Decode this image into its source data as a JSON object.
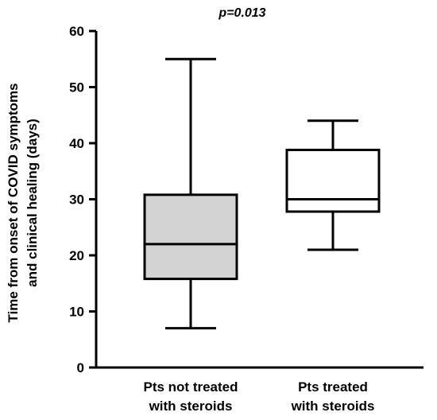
{
  "chart_data": {
    "type": "box",
    "annotation": "p=0.013",
    "ylabel_line1": "Time from onset of COVID symptoms",
    "ylabel_line2": "and clinical healing (days)",
    "ylim": [
      0,
      60
    ],
    "yticks": [
      0,
      10,
      20,
      30,
      40,
      50,
      60
    ],
    "groups": [
      {
        "label_line1": "Pts not treated",
        "label_line2": "with steroids",
        "min": 7,
        "q1": 15.8,
        "median": 22,
        "q3": 30.8,
        "max": 55,
        "fill": "#d3d3d3"
      },
      {
        "label_line1": "Pts treated",
        "label_line2": "with steroids",
        "min": 21,
        "q1": 27.8,
        "median": 30,
        "q3": 38.8,
        "max": 44,
        "fill": "#ffffff"
      }
    ]
  }
}
